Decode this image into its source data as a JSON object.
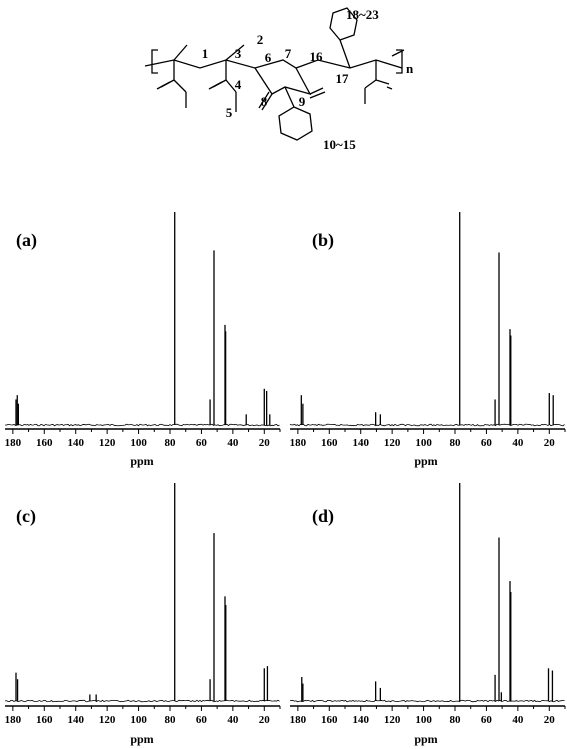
{
  "structure": {
    "labels": [
      "1",
      "2",
      "3",
      "4",
      "5",
      "6",
      "7",
      "8",
      "9",
      "16",
      "17",
      "18~23",
      "10~15",
      "n"
    ]
  },
  "chart_data": [
    {
      "type": "line",
      "panel_label": "(a)",
      "xlabel": "ppm",
      "ylabel": "",
      "xlim": [
        185,
        10
      ],
      "x_reversed": true,
      "xticks": [
        180,
        160,
        140,
        120,
        100,
        80,
        60,
        40,
        20
      ],
      "grid": false,
      "peaks": [
        {
          "x": 178.0,
          "y": 0.12
        },
        {
          "x": 177.2,
          "y": 0.14
        },
        {
          "x": 176.5,
          "y": 0.1
        },
        {
          "x": 77.0,
          "y": 1.0
        },
        {
          "x": 54.5,
          "y": 0.12
        },
        {
          "x": 52.0,
          "y": 0.82
        },
        {
          "x": 45.0,
          "y": 0.47
        },
        {
          "x": 44.6,
          "y": 0.44
        },
        {
          "x": 31.5,
          "y": 0.05
        },
        {
          "x": 20.0,
          "y": 0.17
        },
        {
          "x": 18.5,
          "y": 0.16
        },
        {
          "x": 16.5,
          "y": 0.05
        }
      ]
    },
    {
      "type": "line",
      "panel_label": "(b)",
      "xlabel": "ppm",
      "ylabel": "",
      "xlim": [
        185,
        10
      ],
      "x_reversed": true,
      "xticks": [
        180,
        160,
        140,
        120,
        100,
        80,
        60,
        40,
        20
      ],
      "grid": false,
      "peaks": [
        {
          "x": 177.8,
          "y": 0.14
        },
        {
          "x": 176.8,
          "y": 0.1
        },
        {
          "x": 130.5,
          "y": 0.06
        },
        {
          "x": 127.5,
          "y": 0.05
        },
        {
          "x": 77.0,
          "y": 1.0
        },
        {
          "x": 54.5,
          "y": 0.12
        },
        {
          "x": 52.0,
          "y": 0.81
        },
        {
          "x": 45.0,
          "y": 0.45
        },
        {
          "x": 44.5,
          "y": 0.42
        },
        {
          "x": 20.0,
          "y": 0.15
        },
        {
          "x": 17.5,
          "y": 0.14
        }
      ]
    },
    {
      "type": "line",
      "panel_label": "(c)",
      "xlabel": "ppm",
      "ylabel": "",
      "xlim": [
        185,
        10
      ],
      "x_reversed": true,
      "xticks": [
        180,
        160,
        140,
        120,
        100,
        80,
        60,
        40,
        20
      ],
      "grid": false,
      "peaks": [
        {
          "x": 178.0,
          "y": 0.13
        },
        {
          "x": 177.0,
          "y": 0.1
        },
        {
          "x": 131.0,
          "y": 0.03
        },
        {
          "x": 127.0,
          "y": 0.03
        },
        {
          "x": 77.0,
          "y": 1.0
        },
        {
          "x": 54.5,
          "y": 0.1
        },
        {
          "x": 52.0,
          "y": 0.77
        },
        {
          "x": 45.0,
          "y": 0.48
        },
        {
          "x": 44.5,
          "y": 0.44
        },
        {
          "x": 20.0,
          "y": 0.15
        },
        {
          "x": 18.0,
          "y": 0.16
        }
      ]
    },
    {
      "type": "line",
      "panel_label": "(d)",
      "xlabel": "ppm",
      "ylabel": "",
      "xlim": [
        185,
        10
      ],
      "x_reversed": true,
      "xticks": [
        180,
        160,
        140,
        120,
        100,
        80,
        60,
        40,
        20
      ],
      "grid": false,
      "peaks": [
        {
          "x": 177.5,
          "y": 0.11
        },
        {
          "x": 176.8,
          "y": 0.08
        },
        {
          "x": 130.5,
          "y": 0.09
        },
        {
          "x": 127.5,
          "y": 0.06
        },
        {
          "x": 77.0,
          "y": 1.0
        },
        {
          "x": 54.5,
          "y": 0.12
        },
        {
          "x": 52.0,
          "y": 0.75
        },
        {
          "x": 50.5,
          "y": 0.04
        },
        {
          "x": 45.0,
          "y": 0.55
        },
        {
          "x": 44.5,
          "y": 0.5
        },
        {
          "x": 20.5,
          "y": 0.15
        },
        {
          "x": 18.0,
          "y": 0.14
        }
      ]
    }
  ]
}
